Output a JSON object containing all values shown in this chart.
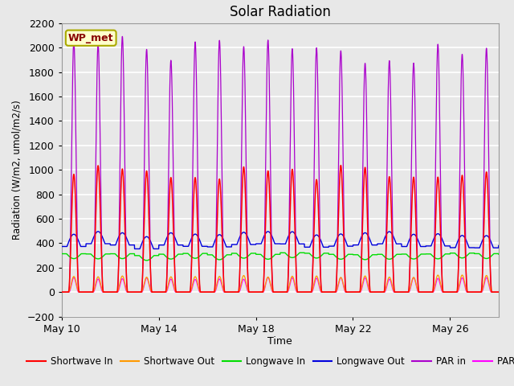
{
  "title": "Solar Radiation",
  "xlabel": "Time",
  "ylabel": "Radiation (W/m2, umol/m2/s)",
  "ylim": [
    -200,
    2200
  ],
  "yticks": [
    -200,
    0,
    200,
    400,
    600,
    800,
    1000,
    1200,
    1400,
    1600,
    1800,
    2000,
    2200
  ],
  "xtick_labels": [
    "May 10",
    "May 14",
    "May 18",
    "May 22",
    "May 26"
  ],
  "xtick_positions": [
    0,
    4,
    8,
    12,
    16
  ],
  "annotation_text": "WP_met",
  "annotation_bg": "#ffffcc",
  "annotation_border": "#aaaa00",
  "annotation_text_color": "#880000",
  "fig_bg_color": "#e8e8e8",
  "ax_bg_color": "#e8e8e8",
  "grid_color": "#ffffff",
  "colors": {
    "shortwave_in": "#ff0000",
    "shortwave_out": "#ff9900",
    "longwave_in": "#00dd00",
    "longwave_out": "#0000dd",
    "par_in": "#aa00cc",
    "par_out": "#ff00ff"
  },
  "legend_labels": [
    "Shortwave In",
    "Shortwave Out",
    "Longwave In",
    "Longwave Out",
    "PAR in",
    "PAR out"
  ],
  "n_days": 18,
  "shortwave_in_peak": 1020,
  "shortwave_out_peak": 140,
  "longwave_in_base": 310,
  "longwave_out_base": 380,
  "par_in_peak": 2120,
  "par_out_peak": 120
}
